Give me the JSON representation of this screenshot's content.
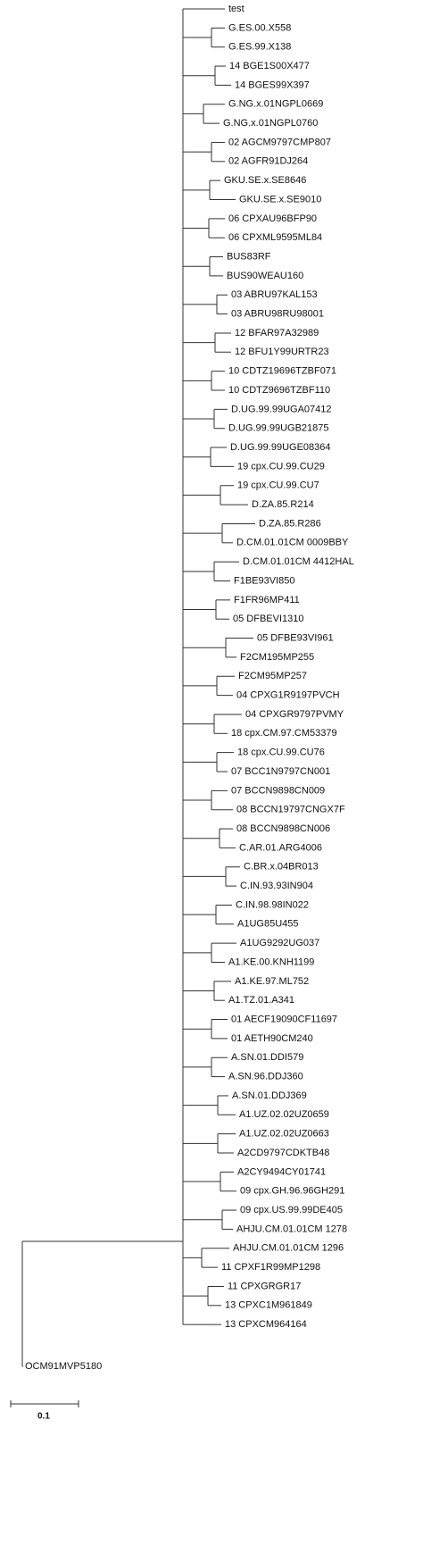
{
  "leaves": [
    "test",
    "G.ES.00.X558",
    "G.ES.99.X138",
    "14 BGE1S00X477",
    "14 BGES99X397",
    "G.NG.x.01NGPL0669",
    "G.NG.x.01NGPL0760",
    "02 AGCM9797CMP807",
    "02 AGFR91DJ264",
    "GKU.SE.x.SE8646",
    "GKU.SE.x.SE9010",
    "06 CPXAU96BFP90",
    "06 CPXML9595ML84",
    "BUS83RF",
    "BUS90WEAU160",
    "03 ABRU97KAL153",
    "03 ABRU98RU98001",
    "12 BFAR97A32989",
    "12 BFU1Y99URTR23",
    "10 CDTZ19696TZBF071",
    "10 CDTZ9696TZBF110",
    "D.UG.99.99UGA07412",
    "D.UG.99.99UGB21875",
    "D.UG.99.99UGE08364",
    "19 cpx.CU.99.CU29",
    "19 cpx.CU.99.CU7",
    "D.ZA.85.R214",
    "D.ZA.85.R286",
    "D.CM.01.01CM 0009BBY",
    "D.CM.01.01CM 4412HAL",
    "F1BE93VI850",
    "F1FR96MP411",
    "05 DFBEVI1310",
    "05 DFBE93VI961",
    "F2CM195MP255",
    "F2CM95MP257",
    "04 CPXG1R9197PVCH",
    "04 CPXGR9797PVMY",
    "18 cpx.CM.97.CM53379",
    "18 cpx.CU.99.CU76",
    "07 BCC1N9797CN001",
    "07 BCCN9898CN009",
    "08 BCCN19797CNGX7F",
    "08 BCCN9898CN006",
    "C.AR.01.ARG4006",
    "C.BR.x.04BR013",
    "C.IN.93.93IN904",
    "C.IN.98.98IN022",
    "A1UG85U455",
    "A1UG9292UG037",
    "A1.KE.00.KNH1199",
    "A1.KE.97.ML752",
    "A1.TZ.01.A341",
    "01 AECF19090CF11697",
    "01 AETH90CM240",
    "A.SN.01.DDI579",
    "A.SN.96.DDJ360",
    "A.SN.01.DDJ369",
    "A1.UZ.02.02UZ0659",
    "A1.UZ.02.02UZ0663",
    "A2CD9797CDKTB48",
    "A2CY9494CY01741",
    "09 cpx.GH.96.96GH291",
    "09 cpx.US.99.99DE405",
    "AHJU.CM.01.01CM 1278",
    "AHJU.CM.01.01CM 1296",
    "11 CPXF1R99MP1298",
    "11 CPXGRGR17",
    "13 CPXC1M961849",
    "13 CPXCM964164"
  ],
  "outgroup": "OCM91MVP5180",
  "scale_bar": {
    "label": "0.1"
  }
}
